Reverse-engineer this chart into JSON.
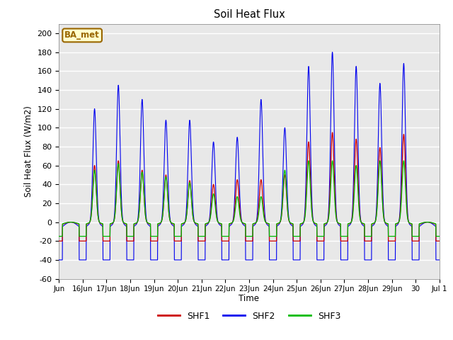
{
  "title": "Soil Heat Flux",
  "ylabel": "Soil Heat Flux (W/m2)",
  "xlabel": "Time",
  "ylim": [
    -60,
    210
  ],
  "ytick_values": [
    -60,
    -40,
    -20,
    0,
    20,
    40,
    60,
    80,
    100,
    120,
    140,
    160,
    180,
    200
  ],
  "xtick_labels": [
    "Jun",
    "16Jun",
    "17Jun",
    "18Jun",
    "19Jun",
    "20Jun",
    "21Jun",
    "22Jun",
    "23Jun",
    "24Jun",
    "25Jun",
    "26Jun",
    "27Jun",
    "28Jun",
    "29Jun",
    "30",
    "Jul 1"
  ],
  "colors": {
    "SHF1": "#cc0000",
    "SHF2": "#0000ee",
    "SHF3": "#00bb00"
  },
  "annotation_text": "BA_met",
  "annotation_bg": "#ffffcc",
  "annotation_border": "#996600",
  "plot_bg": "#e8e8e8",
  "day_peaks_shf2": [
    0,
    120,
    145,
    130,
    108,
    108,
    85,
    90,
    130,
    100,
    165,
    180,
    165,
    147,
    168,
    0
  ],
  "day_peaks_shf1": [
    0,
    60,
    65,
    55,
    50,
    44,
    40,
    45,
    45,
    50,
    85,
    95,
    88,
    79,
    93,
    0
  ],
  "day_peaks_shf3": [
    0,
    55,
    62,
    53,
    48,
    42,
    30,
    27,
    27,
    55,
    65,
    65,
    60,
    65,
    65,
    0
  ],
  "night_shf1": -20,
  "night_shf2": -40,
  "night_shf3": -15
}
